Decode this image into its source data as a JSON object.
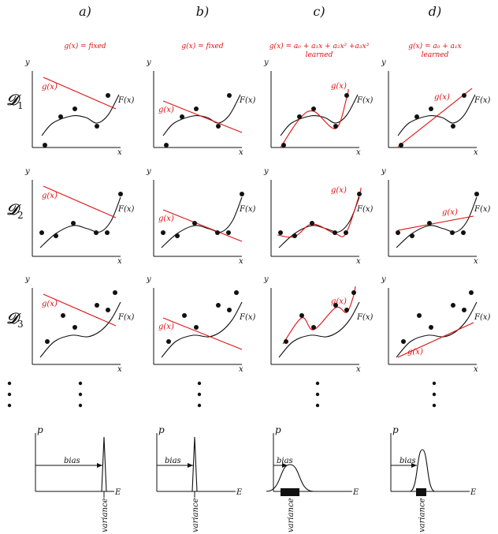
{
  "columns": [
    {
      "title": "a)",
      "model_label": [
        "g(x) = fixed"
      ]
    },
    {
      "title": "b)",
      "model_label": [
        "g(x) = fixed"
      ]
    },
    {
      "title": "c)",
      "model_label": [
        "g(x) = a₀ + a₁x + a₂x² +a₃x³",
        "learned"
      ]
    },
    {
      "title": "d)",
      "model_label": [
        "g(x) = a₀ + a₁x",
        "learned"
      ]
    }
  ],
  "rows": [
    {
      "label": "𝒟",
      "sub": "1"
    },
    {
      "label": "𝒟",
      "sub": "2"
    },
    {
      "label": "𝒟",
      "sub": "3"
    }
  ],
  "axes": {
    "x_label": "x",
    "y_label": "y",
    "p_label": "p",
    "e_label": "E"
  },
  "curve_labels": {
    "true_function": "F(x)",
    "model": "g(x)"
  },
  "distribution_labels": {
    "bias": "bias",
    "variance": "variance"
  },
  "colors": {
    "model": "#e01010",
    "ink": "#111111"
  }
}
